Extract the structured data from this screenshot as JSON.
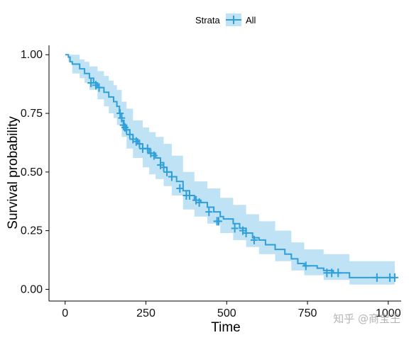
{
  "chart_data": {
    "type": "line",
    "title": "",
    "xlabel": "Time",
    "ylabel": "Survival probability",
    "xlim": [
      -50,
      1040
    ],
    "ylim": [
      -0.05,
      1.04
    ],
    "x_ticks": [
      0,
      250,
      500,
      750,
      1000
    ],
    "x_tick_labels": [
      "0",
      "250",
      "500",
      "750",
      "1000"
    ],
    "y_ticks": [
      0.0,
      0.25,
      0.5,
      0.75,
      1.0
    ],
    "y_tick_labels": [
      "0.00",
      "0.25",
      "0.50",
      "0.75",
      "1.00"
    ],
    "grid": false,
    "legend": {
      "position": "top",
      "title": "Strata",
      "entries": [
        "All"
      ]
    },
    "series": [
      {
        "name": "All",
        "color": "#2E9FD9",
        "band_color": "#BFE2F5",
        "curve": [
          [
            0,
            1.0
          ],
          [
            10,
            0.99
          ],
          [
            15,
            0.97
          ],
          [
            22,
            0.96
          ],
          [
            45,
            0.94
          ],
          [
            60,
            0.92
          ],
          [
            75,
            0.9
          ],
          [
            88,
            0.88
          ],
          [
            100,
            0.86
          ],
          [
            120,
            0.84
          ],
          [
            135,
            0.82
          ],
          [
            150,
            0.8
          ],
          [
            160,
            0.78
          ],
          [
            168,
            0.75
          ],
          [
            175,
            0.72
          ],
          [
            182,
            0.7
          ],
          [
            190,
            0.68
          ],
          [
            200,
            0.66
          ],
          [
            210,
            0.64
          ],
          [
            225,
            0.62
          ],
          [
            240,
            0.6
          ],
          [
            260,
            0.58
          ],
          [
            280,
            0.56
          ],
          [
            295,
            0.54
          ],
          [
            305,
            0.52
          ],
          [
            315,
            0.5
          ],
          [
            330,
            0.48
          ],
          [
            345,
            0.46
          ],
          [
            365,
            0.42
          ],
          [
            385,
            0.4
          ],
          [
            400,
            0.38
          ],
          [
            420,
            0.37
          ],
          [
            440,
            0.35
          ],
          [
            460,
            0.33
          ],
          [
            480,
            0.31
          ],
          [
            490,
            0.3
          ],
          [
            520,
            0.28
          ],
          [
            540,
            0.26
          ],
          [
            560,
            0.24
          ],
          [
            580,
            0.22
          ],
          [
            600,
            0.21
          ],
          [
            620,
            0.19
          ],
          [
            650,
            0.17
          ],
          [
            680,
            0.15
          ],
          [
            700,
            0.13
          ],
          [
            720,
            0.11
          ],
          [
            740,
            0.1
          ],
          [
            780,
            0.09
          ],
          [
            800,
            0.08
          ],
          [
            830,
            0.07
          ],
          [
            880,
            0.05
          ],
          [
            1020,
            0.05
          ]
        ],
        "upper": [
          [
            0,
            1.0
          ],
          [
            10,
            1.0
          ],
          [
            22,
            1.0
          ],
          [
            45,
            0.98
          ],
          [
            60,
            0.97
          ],
          [
            75,
            0.95
          ],
          [
            100,
            0.93
          ],
          [
            120,
            0.91
          ],
          [
            135,
            0.89
          ],
          [
            150,
            0.87
          ],
          [
            160,
            0.85
          ],
          [
            175,
            0.8
          ],
          [
            190,
            0.77
          ],
          [
            210,
            0.72
          ],
          [
            240,
            0.69
          ],
          [
            260,
            0.67
          ],
          [
            280,
            0.65
          ],
          [
            305,
            0.62
          ],
          [
            330,
            0.57
          ],
          [
            365,
            0.5
          ],
          [
            400,
            0.46
          ],
          [
            440,
            0.43
          ],
          [
            480,
            0.39
          ],
          [
            520,
            0.36
          ],
          [
            560,
            0.32
          ],
          [
            600,
            0.29
          ],
          [
            650,
            0.25
          ],
          [
            700,
            0.2
          ],
          [
            740,
            0.17
          ],
          [
            800,
            0.15
          ],
          [
            880,
            0.12
          ],
          [
            1020,
            0.12
          ]
        ],
        "lower": [
          [
            0,
            1.0
          ],
          [
            10,
            0.97
          ],
          [
            22,
            0.92
          ],
          [
            45,
            0.9
          ],
          [
            60,
            0.88
          ],
          [
            75,
            0.85
          ],
          [
            100,
            0.81
          ],
          [
            120,
            0.78
          ],
          [
            135,
            0.75
          ],
          [
            150,
            0.73
          ],
          [
            160,
            0.7
          ],
          [
            175,
            0.65
          ],
          [
            190,
            0.6
          ],
          [
            210,
            0.56
          ],
          [
            240,
            0.52
          ],
          [
            260,
            0.49
          ],
          [
            280,
            0.47
          ],
          [
            305,
            0.44
          ],
          [
            330,
            0.4
          ],
          [
            365,
            0.34
          ],
          [
            400,
            0.31
          ],
          [
            440,
            0.28
          ],
          [
            480,
            0.24
          ],
          [
            520,
            0.21
          ],
          [
            560,
            0.18
          ],
          [
            600,
            0.15
          ],
          [
            650,
            0.12
          ],
          [
            700,
            0.08
          ],
          [
            740,
            0.06
          ],
          [
            800,
            0.04
          ],
          [
            880,
            0.02
          ],
          [
            1020,
            0.02
          ]
        ],
        "censored": [
          [
            80,
            0.88
          ],
          [
            95,
            0.87
          ],
          [
            105,
            0.86
          ],
          [
            170,
            0.75
          ],
          [
            175,
            0.73
          ],
          [
            180,
            0.7
          ],
          [
            185,
            0.69
          ],
          [
            190,
            0.68
          ],
          [
            200,
            0.66
          ],
          [
            210,
            0.64
          ],
          [
            220,
            0.63
          ],
          [
            230,
            0.62
          ],
          [
            240,
            0.6
          ],
          [
            255,
            0.6
          ],
          [
            265,
            0.58
          ],
          [
            275,
            0.57
          ],
          [
            295,
            0.53
          ],
          [
            305,
            0.52
          ],
          [
            315,
            0.5
          ],
          [
            330,
            0.48
          ],
          [
            355,
            0.43
          ],
          [
            375,
            0.4
          ],
          [
            385,
            0.4
          ],
          [
            405,
            0.38
          ],
          [
            415,
            0.37
          ],
          [
            445,
            0.33
          ],
          [
            470,
            0.29
          ],
          [
            475,
            0.29
          ],
          [
            525,
            0.26
          ],
          [
            550,
            0.25
          ],
          [
            560,
            0.24
          ],
          [
            585,
            0.21
          ],
          [
            745,
            0.1
          ],
          [
            810,
            0.07
          ],
          [
            825,
            0.07
          ],
          [
            845,
            0.07
          ],
          [
            965,
            0.05
          ],
          [
            1005,
            0.05
          ],
          [
            1020,
            0.05
          ]
        ]
      }
    ]
  },
  "watermark": "知乎 @商宝王"
}
